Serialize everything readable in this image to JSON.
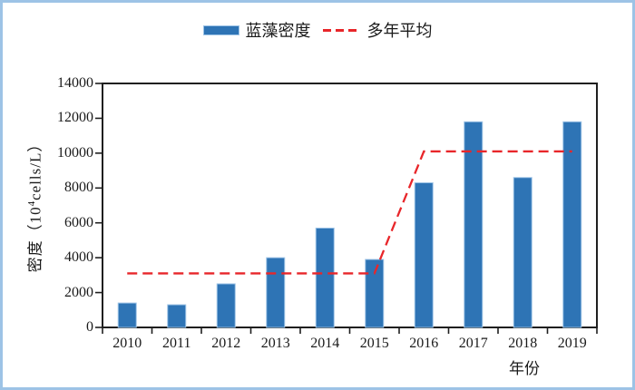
{
  "frame": {
    "border_color": "#9dc3e6",
    "background": "#ffffff",
    "axis_color": "#1f1f1f",
    "text_color": "#1a1a1a"
  },
  "legend": {
    "position": "top-center",
    "items": [
      {
        "label": "蓝藻密度",
        "marker": "bar-swatch",
        "color": "#2e74b5",
        "swatch_border": "#9dc3e6"
      },
      {
        "label": "多年平均",
        "marker": "dashed-line",
        "color": "#e8262a"
      }
    ]
  },
  "axes": {
    "x_title": "年份",
    "y_title": "密度（10⁴cells/L）",
    "y_title_parts": {
      "prefix": "密度（10",
      "superscript": "4",
      "suffix": "cells/L）"
    }
  },
  "chart_data": {
    "type": "bar",
    "title": "",
    "categories": [
      "2010",
      "2011",
      "2012",
      "2013",
      "2014",
      "2015",
      "2016",
      "2017",
      "2018",
      "2019"
    ],
    "series": [
      {
        "name": "蓝藻密度",
        "type": "bar",
        "color": "#2e74b5",
        "bar_border_color": "#9dc3e6",
        "values": [
          1400,
          1300,
          2500,
          4000,
          5700,
          3900,
          8300,
          11800,
          8600,
          11800
        ]
      },
      {
        "name": "多年平均",
        "type": "line",
        "line_style": "dashed",
        "color": "#e8262a",
        "values": [
          3100,
          3100,
          3100,
          3100,
          3100,
          3100,
          10100,
          10100,
          10100,
          10100
        ]
      }
    ],
    "xlabel": "年份",
    "ylabel": "密度（10⁴cells/L）",
    "ylim": [
      0,
      14000
    ],
    "yticks": [
      0,
      2000,
      4000,
      6000,
      8000,
      10000,
      12000,
      14000
    ],
    "grid": false,
    "legend_position": "top-center"
  }
}
